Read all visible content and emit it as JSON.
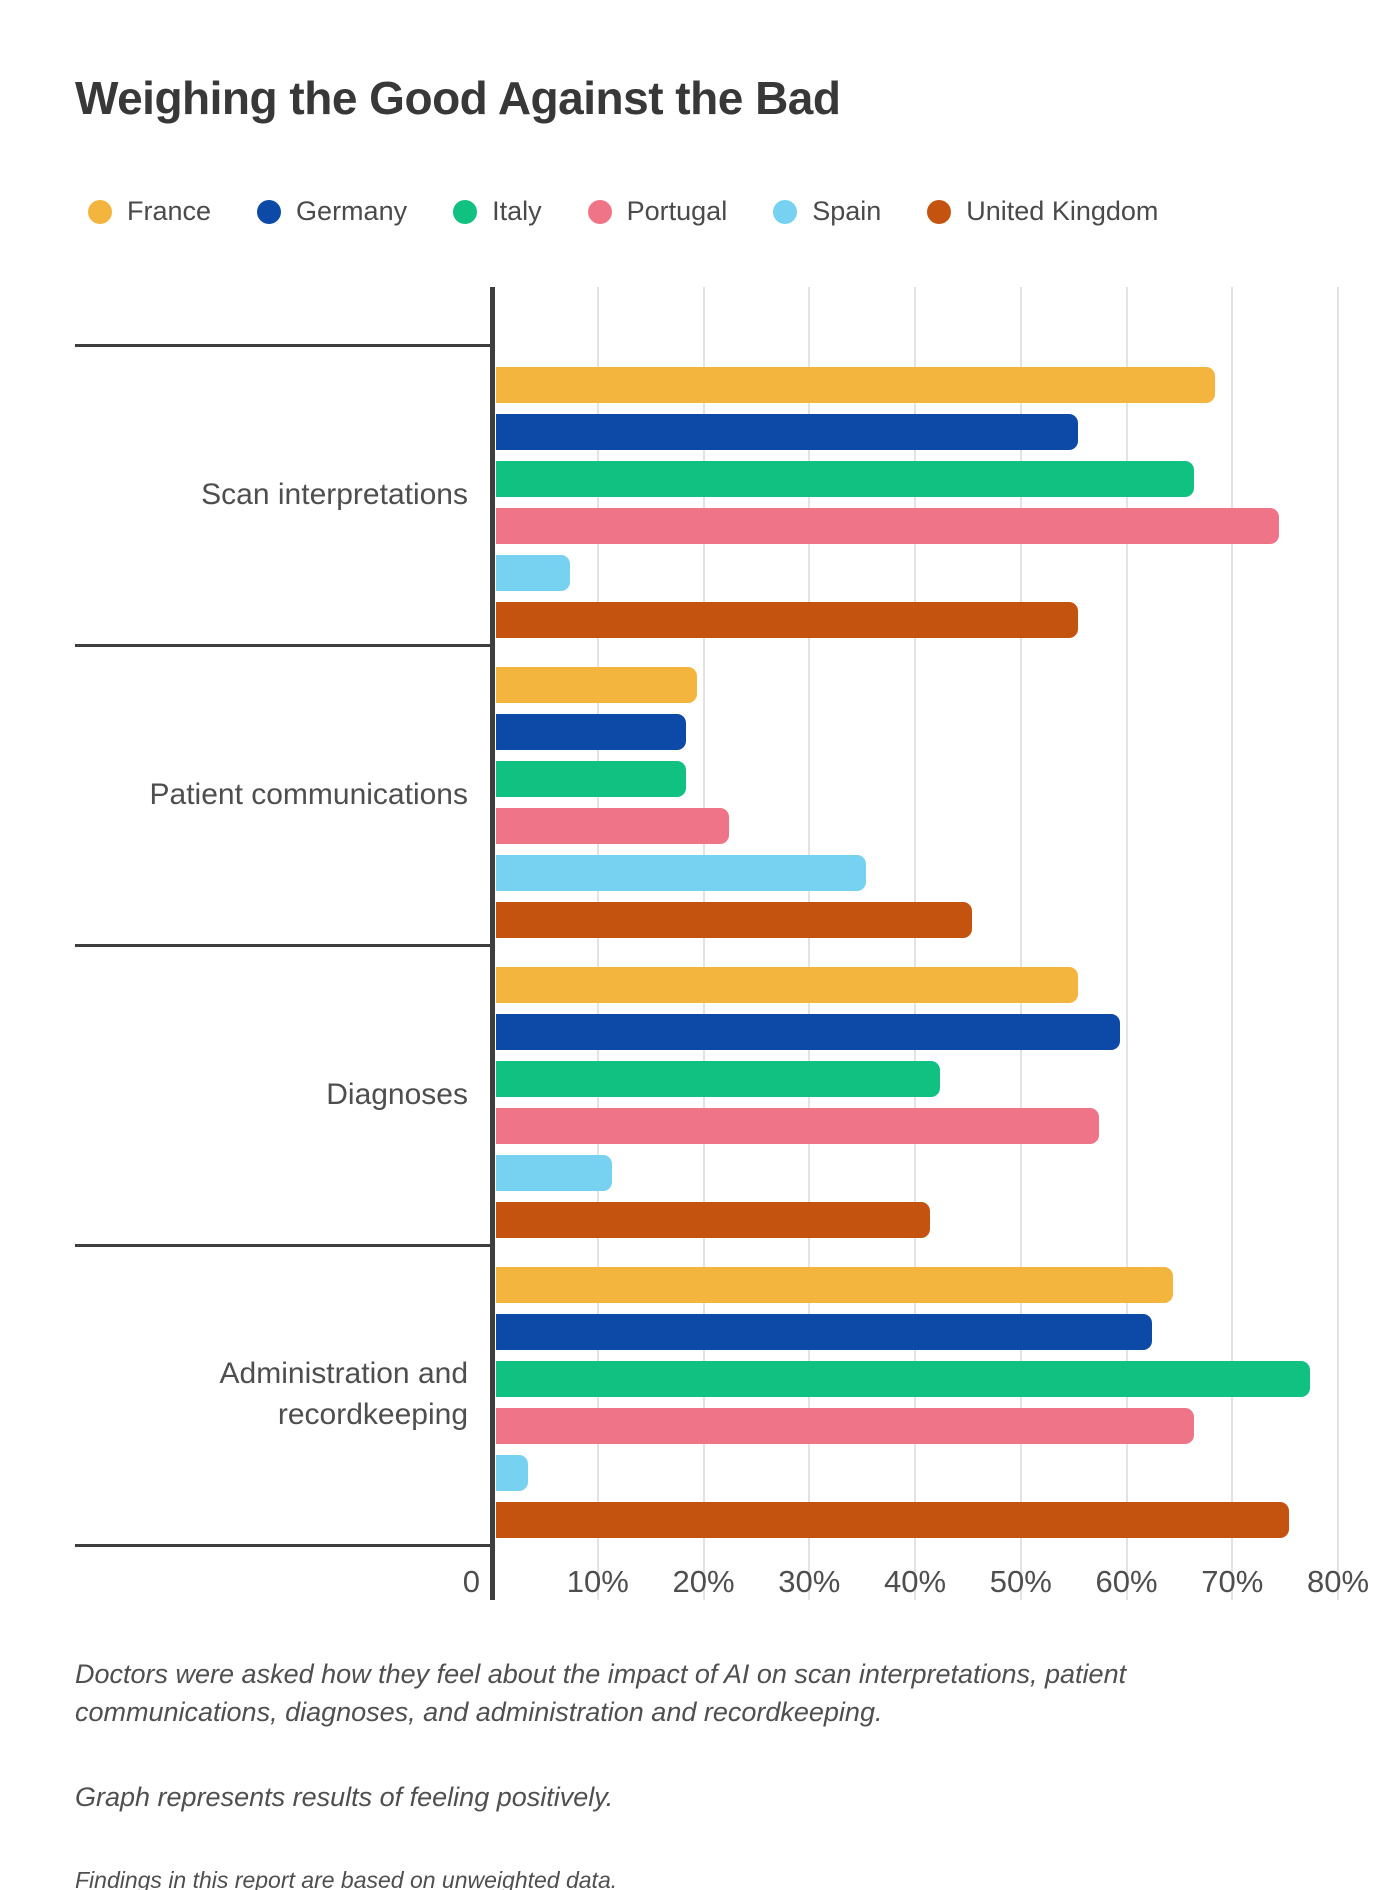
{
  "title": "Weighing the Good Against the Bad",
  "chart_data": {
    "type": "bar",
    "orientation": "horizontal",
    "title": "Weighing the Good Against the Bad",
    "categories": [
      "Scan interpretations",
      "Patient communications",
      "Diagnoses",
      "Administration and recordkeeping"
    ],
    "series": [
      {
        "name": "France",
        "color": "#F3B53E",
        "values": [
          68,
          19,
          55,
          64
        ]
      },
      {
        "name": "Germany",
        "color": "#0D4AA8",
        "values": [
          55,
          18,
          59,
          62
        ]
      },
      {
        "name": "Italy",
        "color": "#10C181",
        "values": [
          66,
          18,
          42,
          77
        ]
      },
      {
        "name": "Portugal",
        "color": "#F07488",
        "values": [
          74,
          22,
          57,
          66
        ]
      },
      {
        "name": "Spain",
        "color": "#77D1F0",
        "values": [
          7,
          35,
          11,
          3
        ]
      },
      {
        "name": "United Kingdom",
        "color": "#C4530F",
        "values": [
          55,
          45,
          41,
          75
        ]
      }
    ],
    "x_ticks": [
      "0",
      "10%",
      "20%",
      "30%",
      "40%",
      "50%",
      "60%",
      "70%",
      "80%"
    ],
    "xlim": [
      0,
      80
    ],
    "grid": "vertical",
    "legend_position": "top",
    "unit": "%"
  },
  "notes": {
    "survey_question": "Doctors were asked how they feel about the impact of AI on scan interpretations, patient communications, diagnoses, and administration and recordkeeping.",
    "graph_note": "Graph represents results of feeling positively.",
    "data_note": "Findings in this report are based on unweighted data."
  },
  "styles": {
    "axis_color": "#3E3E3E",
    "gridline_color": "#E3E3E3",
    "text_color": "#4E4E4E",
    "title_color": "#383838",
    "background": "#FFFFFF"
  }
}
